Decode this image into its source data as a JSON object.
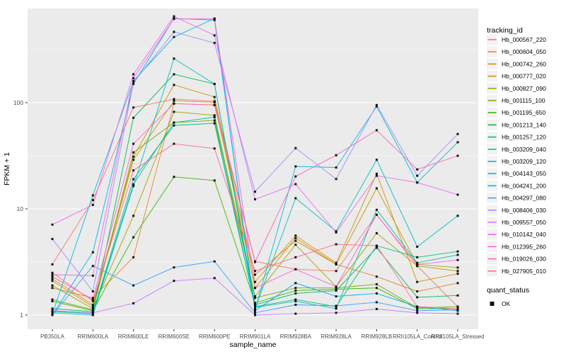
{
  "chart_data": {
    "type": "line",
    "title": "",
    "xlabel": "sample_name",
    "ylabel": "FPKM + 1",
    "y_scale": "log10",
    "y_major_ticks": [
      1,
      10,
      100
    ],
    "y_minor_breaks": [
      3.162,
      31.62,
      316.2
    ],
    "ylim": [
      0.78,
      780
    ],
    "grid": "white major+minor gridlines on grey panel",
    "legend_position": "right",
    "color_legend_title": "tracking_id",
    "shape_legend_title": "quant_status",
    "shape_legend_values": [
      "OK"
    ],
    "categories": [
      "PB350LA",
      "RRIM600LA",
      "RRIM600LE",
      "RRIM600SE",
      "RRIM600PE",
      "RRIM901LA",
      "RRIM928BA",
      "RRIM928LA",
      "RRIM928LB",
      "RRII105LA_Control",
      "RRII105LA_Stressed"
    ],
    "series": [
      {
        "name": "Hb_000567_220",
        "color": "#F8766D",
        "values": [
          3.0,
          12.1,
          90,
          108,
          103,
          3.2,
          2.7,
          2.6,
          8.8,
          2.9,
          1.2
        ]
      },
      {
        "name": "Hb_000604_050",
        "color": "#EA8331",
        "values": [
          1.8,
          1.45,
          3.5,
          98,
          95,
          2.4,
          5.0,
          3.0,
          2.3,
          1.67,
          2.0
        ]
      },
      {
        "name": "Hb_000742_260",
        "color": "#D89000",
        "values": [
          2.2,
          1.25,
          31,
          147,
          113,
          2.05,
          5.6,
          3.1,
          21.4,
          2.05,
          2.45
        ]
      },
      {
        "name": "Hb_000777_020",
        "color": "#C09B00",
        "values": [
          2.1,
          1.2,
          29,
          104,
          101,
          1.8,
          5.3,
          3.0,
          15.6,
          3.0,
          2.8
        ]
      },
      {
        "name": "Hb_000827_090",
        "color": "#A3A500",
        "values": [
          1.9,
          1.15,
          8.6,
          82,
          76,
          1.5,
          4.6,
          1.85,
          5.9,
          2.9,
          2.6
        ]
      },
      {
        "name": "Hb_001115_100",
        "color": "#7CAE00",
        "values": [
          1.4,
          1.12,
          34,
          65,
          68,
          1.45,
          1.8,
          1.8,
          1.95,
          1.17,
          1.2
        ]
      },
      {
        "name": "Hb_001195_650",
        "color": "#39B600",
        "values": [
          1.35,
          1.1,
          5.4,
          20,
          18.5,
          1.3,
          1.7,
          1.75,
          1.8,
          1.15,
          1.15
        ]
      },
      {
        "name": "Hb_001213_140",
        "color": "#00BB4E",
        "values": [
          1.15,
          1.08,
          72,
          185,
          150,
          1.25,
          1.6,
          1.7,
          4.3,
          1.47,
          1.53
        ]
      },
      {
        "name": "Hb_001257_120",
        "color": "#00BF7D",
        "values": [
          1.1,
          1.05,
          19,
          61,
          64,
          1.2,
          1.4,
          1.2,
          4.5,
          3.5,
          3.97
        ]
      },
      {
        "name": "Hb_003209_040",
        "color": "#00C1A3",
        "values": [
          1.08,
          1.03,
          17,
          65,
          73,
          1.18,
          1.35,
          1.15,
          9.8,
          3.1,
          3.69
        ]
      },
      {
        "name": "Hb_003209_120",
        "color": "#00BFC4",
        "values": [
          1.05,
          1.0,
          16.4,
          260,
          150,
          1.15,
          12.6,
          6.15,
          29,
          4.4,
          8.6
        ]
      },
      {
        "name": "Hb_004143_050",
        "color": "#00BAE0",
        "values": [
          1.03,
          13.4,
          160,
          415,
          620,
          1.12,
          25.1,
          24.5,
          92,
          17.7,
          42.4
        ]
      },
      {
        "name": "Hb_004241_200",
        "color": "#00B0F6",
        "values": [
          1.0,
          3.9,
          150,
          620,
          600,
          1.1,
          2.0,
          1.5,
          1.6,
          1.2,
          1.1
        ]
      },
      {
        "name": "Hb_004297_080",
        "color": "#35A2FF",
        "values": [
          1.0,
          2.9,
          1.9,
          2.81,
          3.2,
          1.05,
          1.25,
          1.22,
          1.32,
          1.1,
          1.12
        ]
      },
      {
        "name": "Hb_008406_030",
        "color": "#9590FF",
        "values": [
          5.2,
          1.67,
          155,
          464,
          365,
          14.5,
          37.3,
          19.1,
          95,
          20.5,
          50.7
        ]
      },
      {
        "name": "Hb_009557_050",
        "color": "#C77CFF",
        "values": [
          1.1,
          1.05,
          1.29,
          2.1,
          2.23,
          1.0,
          1.03,
          1.05,
          1.14,
          1.05,
          1.03
        ]
      },
      {
        "name": "Hb_010142_040",
        "color": "#E76BF3",
        "values": [
          7.1,
          10.9,
          185,
          650,
          430,
          12.3,
          17.1,
          6.0,
          20.5,
          17.7,
          13.6
        ]
      },
      {
        "name": "Hb_012395_260",
        "color": "#FA62DB",
        "values": [
          2.4,
          2.35,
          170,
          615,
          615,
          1.8,
          2.7,
          1.85,
          8.8,
          3.0,
          3.3
        ]
      },
      {
        "name": "Hb_019026_030",
        "color": "#FF62BC",
        "values": [
          2.3,
          1.4,
          41,
          98,
          95,
          3.16,
          20.2,
          32,
          55,
          23.5,
          31.6
        ]
      },
      {
        "name": "Hb_027905_010",
        "color": "#FF6A98",
        "values": [
          2.5,
          1.35,
          23,
          41,
          37,
          2.6,
          3.5,
          4.64,
          4.5,
          1.2,
          1.15
        ]
      }
    ]
  },
  "style_colors": {
    "panel_bg": "#EBEBEB",
    "grid": "#FFFFFF",
    "axis_text": "#4D4D4D",
    "tick_mark": "#333333",
    "point": "#111111",
    "legend_key_bg": "#F2F2F2",
    "title_text": "#000000"
  }
}
